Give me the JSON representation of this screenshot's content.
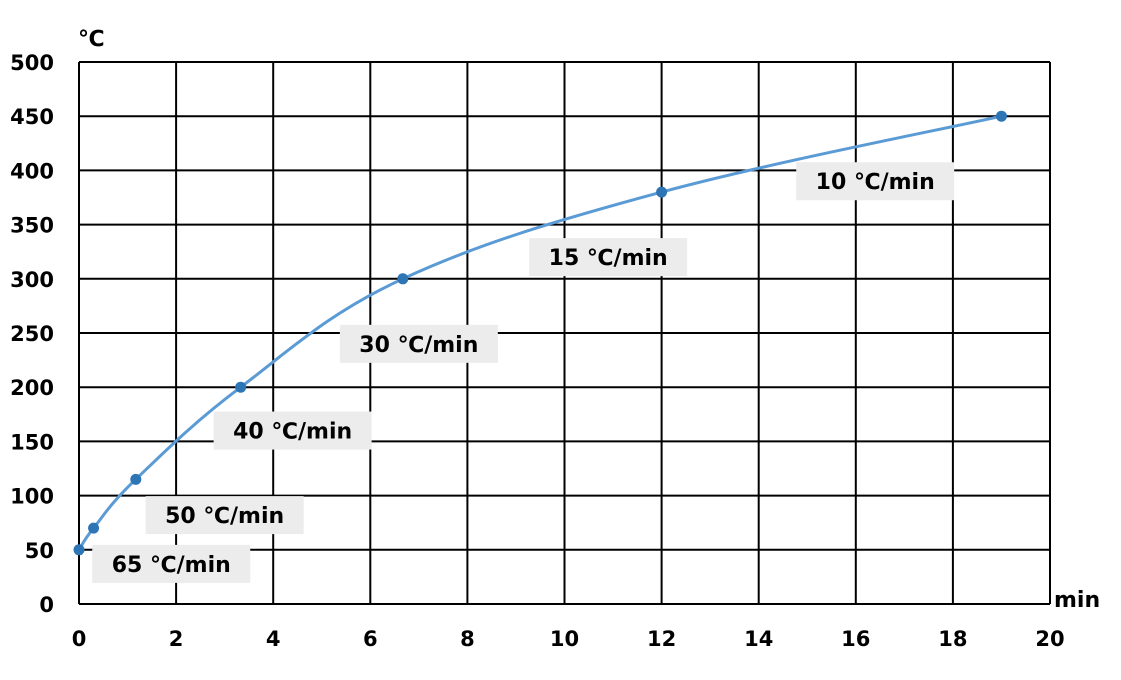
{
  "chart_data": {
    "type": "line",
    "title": "",
    "xlabel": "min",
    "ylabel": "℃",
    "xlim": [
      0,
      20
    ],
    "ylim": [
      0,
      500
    ],
    "x_ticks": [
      0,
      2,
      4,
      6,
      8,
      10,
      12,
      14,
      16,
      18,
      20
    ],
    "y_ticks": [
      0,
      50,
      100,
      150,
      200,
      250,
      300,
      350,
      400,
      450,
      500
    ],
    "grid": true,
    "legend": "none",
    "series": [
      {
        "name": "",
        "color": "#5b9bd5",
        "marker_color": "#2e75b6",
        "x": [
          0,
          0.3,
          1.17,
          3.33,
          6.67,
          12,
          19
        ],
        "y": [
          50,
          70,
          115,
          200,
          300,
          380,
          450
        ]
      }
    ],
    "annotations": [
      {
        "text": "65 ℃/min",
        "x": 1.9,
        "y": 37
      },
      {
        "text": "50 ℃/min",
        "x": 3.0,
        "y": 82
      },
      {
        "text": "40 ℃/min",
        "x": 4.4,
        "y": 160
      },
      {
        "text": "30 ℃/min",
        "x": 7.0,
        "y": 240
      },
      {
        "text": "15 ℃/min",
        "x": 10.9,
        "y": 320
      },
      {
        "text": "10 ℃/min",
        "x": 16.4,
        "y": 390
      }
    ]
  }
}
